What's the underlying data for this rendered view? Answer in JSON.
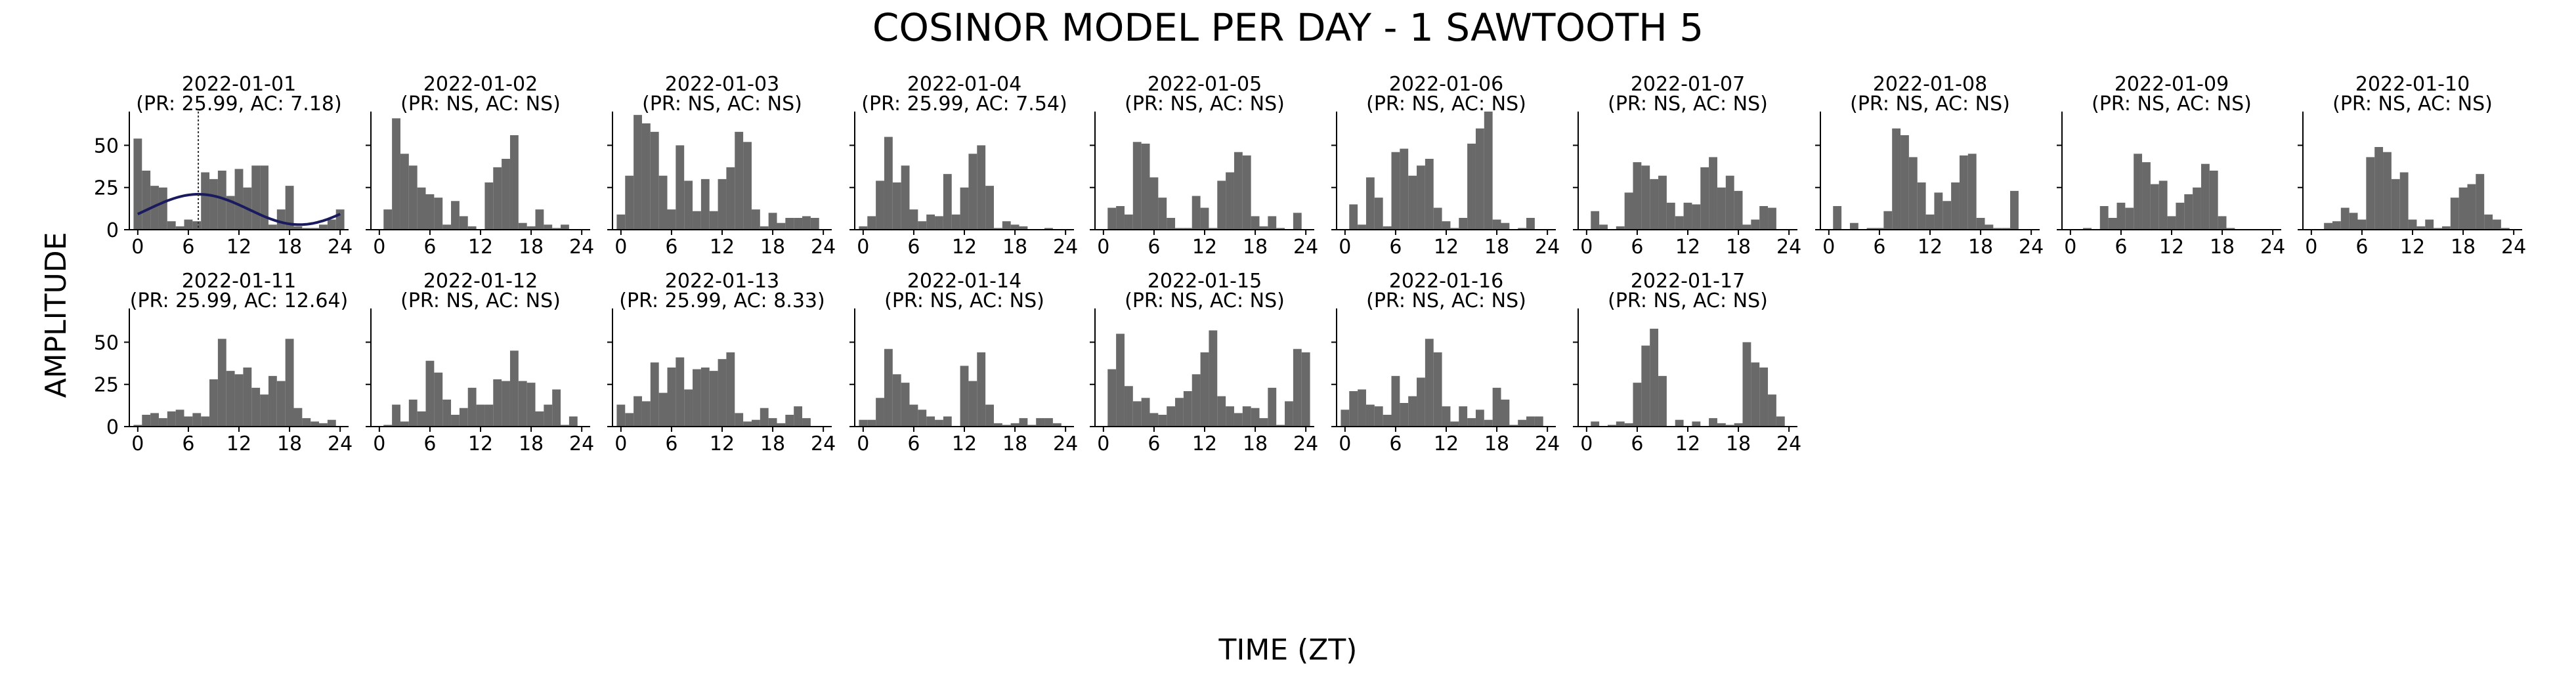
{
  "chart_data": {
    "type": "bar",
    "title": "COSINOR MODEL PER DAY - 1 SAWTOOTH 5",
    "xlabel": "TIME (ZT)",
    "ylabel": "AMPLITUDE",
    "xlim": [
      -1,
      25
    ],
    "ylim": [
      0,
      70
    ],
    "xticks": [
      0,
      6,
      12,
      18,
      24
    ],
    "yticks": [
      0,
      25,
      50
    ],
    "bar_color": "#696969",
    "curve_color": "#1a1a5e",
    "grid": false,
    "panels": [
      {
        "date": "2022-01-01",
        "stats": "(PR: 25.99, AC: 7.18)",
        "acrophase": 7.18,
        "values": [
          54,
          35,
          26,
          25,
          5,
          2,
          6,
          5,
          34,
          30,
          35,
          20,
          36,
          25,
          38,
          38,
          3,
          12,
          26,
          2,
          1,
          1,
          3,
          6,
          12,
          0
        ],
        "fit": {
          "mesor": 12,
          "amplitude": 9
        }
      },
      {
        "date": "2022-01-02",
        "stats": "(PR: NS, AC: NS)",
        "acrophase": null,
        "values": [
          0,
          12,
          66,
          45,
          38,
          25,
          21,
          19,
          3,
          17,
          8,
          2,
          0,
          28,
          37,
          42,
          56,
          4,
          2,
          12,
          3,
          1,
          3,
          0,
          0,
          0
        ]
      },
      {
        "date": "2022-01-03",
        "stats": "(PR: NS, AC: NS)",
        "acrophase": null,
        "values": [
          9,
          32,
          68,
          63,
          58,
          32,
          12,
          50,
          29,
          11,
          30,
          11,
          30,
          37,
          58,
          52,
          12,
          2,
          10,
          4,
          7,
          7,
          8,
          7,
          0,
          0
        ]
      },
      {
        "date": "2022-01-04",
        "stats": "(PR: 25.99, AC: 7.54)",
        "acrophase": 7.54,
        "values": [
          2,
          8,
          29,
          55,
          28,
          38,
          12,
          5,
          9,
          8,
          33,
          9,
          25,
          45,
          50,
          26,
          1,
          5,
          3,
          2,
          0,
          0,
          1,
          0,
          0,
          0
        ]
      },
      {
        "date": "2022-01-05",
        "stats": "(PR: NS, AC: NS)",
        "acrophase": null,
        "values": [
          0,
          13,
          14,
          9,
          52,
          51,
          31,
          19,
          7,
          1,
          1,
          20,
          13,
          1,
          29,
          34,
          46,
          44,
          8,
          2,
          8,
          1,
          0,
          10,
          0,
          0
        ]
      },
      {
        "date": "2022-01-06",
        "stats": "(PR: NS, AC: NS)",
        "acrophase": null,
        "values": [
          0,
          15,
          3,
          31,
          19,
          2,
          46,
          48,
          32,
          38,
          42,
          13,
          5,
          1,
          7,
          51,
          60,
          70,
          6,
          4,
          0,
          1,
          7,
          0,
          0,
          0
        ]
      },
      {
        "date": "2022-01-07",
        "stats": "(PR: NS, AC: NS)",
        "acrophase": null,
        "values": [
          0,
          11,
          3,
          0,
          2,
          22,
          40,
          38,
          30,
          32,
          16,
          8,
          16,
          15,
          37,
          43,
          25,
          32,
          23,
          3,
          6,
          14,
          13,
          0,
          0,
          0
        ]
      },
      {
        "date": "2022-01-08",
        "stats": "(PR: NS, AC: NS)",
        "acrophase": null,
        "values": [
          0,
          14,
          0,
          4,
          0,
          1,
          1,
          11,
          60,
          56,
          43,
          28,
          9,
          22,
          17,
          28,
          44,
          45,
          7,
          3,
          1,
          1,
          23,
          0,
          0,
          0
        ]
      },
      {
        "date": "2022-01-09",
        "stats": "(PR: NS, AC: NS)",
        "acrophase": null,
        "values": [
          0,
          0,
          1,
          0,
          14,
          7,
          16,
          13,
          45,
          40,
          27,
          29,
          8,
          16,
          21,
          25,
          39,
          35,
          8,
          1,
          0,
          0,
          0,
          0,
          0,
          0
        ]
      },
      {
        "date": "2022-01-10",
        "stats": "(PR: NS, AC: NS)",
        "acrophase": null,
        "values": [
          0,
          0,
          4,
          5,
          13,
          10,
          6,
          43,
          49,
          46,
          30,
          34,
          6,
          2,
          6,
          1,
          2,
          19,
          25,
          27,
          33,
          9,
          6,
          1,
          0,
          0
        ]
      },
      {
        "date": "2022-01-11",
        "stats": "(PR: 25.99, AC: 12.64)",
        "acrophase": 12.64,
        "values": [
          1,
          7,
          8,
          5,
          9,
          10,
          6,
          8,
          6,
          28,
          52,
          33,
          31,
          35,
          23,
          19,
          30,
          27,
          52,
          11,
          5,
          3,
          2,
          4,
          0,
          0
        ]
      },
      {
        "date": "2022-01-12",
        "stats": "(PR: NS, AC: NS)",
        "acrophase": null,
        "values": [
          0,
          1,
          13,
          3,
          16,
          9,
          39,
          32,
          16,
          7,
          11,
          23,
          13,
          13,
          28,
          27,
          45,
          27,
          26,
          9,
          13,
          22,
          1,
          6,
          0,
          0
        ]
      },
      {
        "date": "2022-01-13",
        "stats": "(PR: 25.99, AC: 8.33)",
        "acrophase": 8.33,
        "values": [
          13,
          8,
          18,
          15,
          38,
          20,
          35,
          41,
          22,
          34,
          35,
          33,
          40,
          44,
          8,
          3,
          4,
          11,
          5,
          2,
          7,
          12,
          5,
          0,
          0,
          0
        ]
      },
      {
        "date": "2022-01-14",
        "stats": "(PR: NS, AC: NS)",
        "acrophase": null,
        "values": [
          4,
          4,
          17,
          46,
          31,
          26,
          13,
          10,
          6,
          4,
          6,
          0,
          36,
          27,
          44,
          13,
          2,
          1,
          2,
          5,
          1,
          5,
          5,
          2,
          0,
          0
        ]
      },
      {
        "date": "2022-01-15",
        "stats": "(PR: NS, AC: NS)",
        "acrophase": null,
        "values": [
          0,
          34,
          55,
          24,
          15,
          17,
          8,
          7,
          12,
          17,
          21,
          31,
          44,
          57,
          18,
          12,
          8,
          12,
          11,
          5,
          23,
          1,
          15,
          46,
          44,
          0
        ]
      },
      {
        "date": "2022-01-16",
        "stats": "(PR: NS, AC: NS)",
        "acrophase": null,
        "values": [
          10,
          21,
          22,
          13,
          12,
          7,
          30,
          14,
          18,
          29,
          52,
          44,
          12,
          3,
          12,
          5,
          10,
          4,
          23,
          16,
          1,
          4,
          6,
          6,
          0,
          0
        ]
      },
      {
        "date": "2022-01-17",
        "stats": "(PR: NS, AC: NS)",
        "acrophase": null,
        "values": [
          0,
          3,
          0,
          1,
          3,
          2,
          26,
          48,
          58,
          30,
          0,
          4,
          0,
          3,
          0,
          5,
          2,
          1,
          2,
          50,
          38,
          35,
          19,
          6,
          0,
          0
        ]
      }
    ]
  }
}
